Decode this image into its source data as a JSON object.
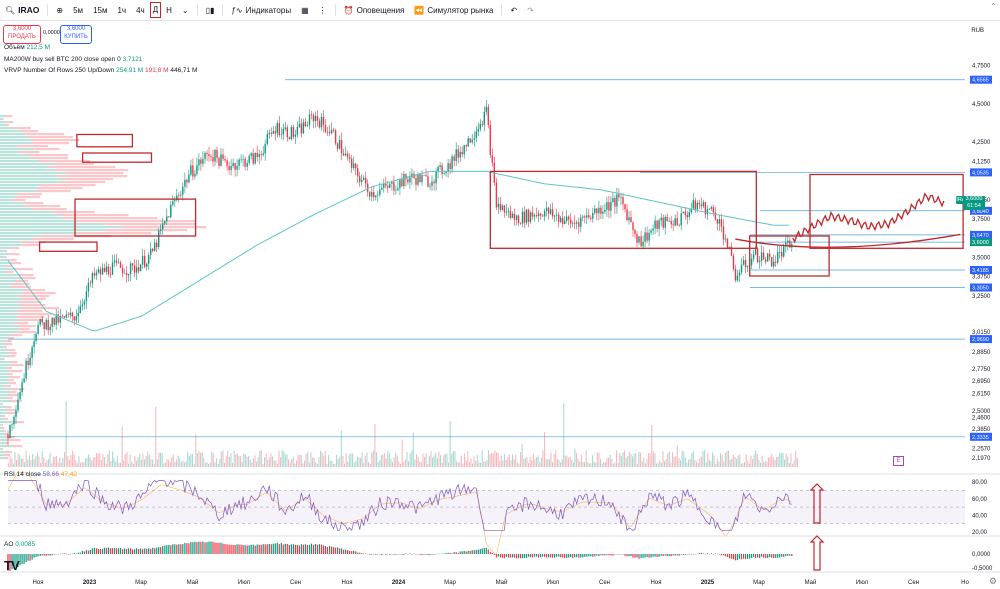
{
  "toolbar": {
    "symbol": "IRAO",
    "intervals": [
      "5м",
      "15м",
      "1ч",
      "4ч",
      "Д",
      "Н"
    ],
    "active_interval": "Д",
    "indicators_label": "Индикаторы",
    "alerts_label": "Оповещения",
    "replay_label": "Симулятор рынка"
  },
  "trade": {
    "sell_price": "3,6000",
    "sell_label": "ПРОДАТЬ",
    "spread": "0,0000",
    "buy_price": "3,6000",
    "buy_label": "КУПИТЬ"
  },
  "legend": {
    "volume_label": "Объём",
    "volume_value": "212,5 M",
    "ma_label": "MA200W buy sell BTC 200 close open 0",
    "ma_value": "3,7121",
    "vrvp_label": "VRVP Number Of Rows 250 Up/Down",
    "vrvp_up": "254,91 M",
    "vrvp_down": "191,8 M",
    "vrvp_total": "446,71 M",
    "rsi_label": "RSI 14 close",
    "rsi_value": "58,66",
    "rsi_ma": "47,42",
    "ao_label": "AO",
    "ao_value": "0,0085"
  },
  "axis": {
    "currency": "RUB",
    "current_symbol": "IRAO",
    "current_price": "3,6000",
    "countdown": "61:54",
    "watermark": "TV",
    "event_marker": "E"
  },
  "colors": {
    "up": "#089981",
    "down": "#f23645",
    "ma": "#5dc5c5",
    "annotation": "#c0282d",
    "rsi": "#7e57c2",
    "hline": "#4aa3df",
    "badge": "#2962ff"
  },
  "chart_data": [
    {
      "type": "candlestick",
      "title": "IRAO",
      "ylim": [
        2.15,
        4.85
      ],
      "y_ticks": [
        "4,7500",
        "4,5000",
        "4,2500",
        "4,1250",
        "3,8750",
        "3,7500",
        "3,5000",
        "3,3750",
        "3,2500",
        "3,0150",
        "2,8850",
        "2,7750",
        "2,6950",
        "2,6150",
        "2,5000",
        "2,4600",
        "2,3850",
        "2,2570",
        "2,1970"
      ],
      "x_labels": [
        "Ноя",
        "2023",
        "Мар",
        "Май",
        "Июл",
        "Сен",
        "Ноя",
        "2024",
        "Мар",
        "Май",
        "Июл",
        "Сен",
        "Ноя",
        "2025",
        "Мар",
        "Май",
        "Июл",
        "Сен",
        "Но"
      ],
      "horizontal_levels": [
        {
          "value": 4.6565,
          "label": "4,6565"
        },
        {
          "value": 4.0535,
          "label": "4,0535"
        },
        {
          "value": 3.804,
          "label": "3,8040"
        },
        {
          "value": 3.647,
          "label": "3,6470"
        },
        {
          "value": 3.6,
          "label": "3,6000"
        },
        {
          "value": 3.4185,
          "label": "3,4185"
        },
        {
          "value": 3.305,
          "label": "3,3050"
        },
        {
          "value": 2.969,
          "label": "2,9690"
        },
        {
          "value": 2.3335,
          "label": "2,3335"
        }
      ],
      "price_path": [
        [
          0.0,
          2.35
        ],
        [
          0.03,
          3.05
        ],
        [
          0.07,
          3.12
        ],
        [
          0.09,
          3.38
        ],
        [
          0.11,
          3.44
        ],
        [
          0.13,
          3.42
        ],
        [
          0.15,
          3.52
        ],
        [
          0.17,
          3.82
        ],
        [
          0.19,
          4.05
        ],
        [
          0.21,
          4.18
        ],
        [
          0.23,
          4.1
        ],
        [
          0.26,
          4.15
        ],
        [
          0.28,
          4.35
        ],
        [
          0.3,
          4.3
        ],
        [
          0.32,
          4.42
        ],
        [
          0.34,
          4.3
        ],
        [
          0.36,
          4.08
        ],
        [
          0.38,
          3.92
        ],
        [
          0.4,
          3.96
        ],
        [
          0.42,
          4.02
        ],
        [
          0.44,
          4.0
        ],
        [
          0.46,
          4.1
        ],
        [
          0.48,
          4.25
        ],
        [
          0.5,
          4.45
        ],
        [
          0.51,
          3.85
        ],
        [
          0.53,
          3.75
        ],
        [
          0.56,
          3.8
        ],
        [
          0.59,
          3.72
        ],
        [
          0.62,
          3.82
        ],
        [
          0.64,
          3.88
        ],
        [
          0.66,
          3.6
        ],
        [
          0.68,
          3.72
        ],
        [
          0.7,
          3.74
        ],
        [
          0.72,
          3.85
        ],
        [
          0.74,
          3.78
        ],
        [
          0.75,
          3.62
        ],
        [
          0.76,
          3.38
        ],
        [
          0.78,
          3.52
        ],
        [
          0.8,
          3.48
        ],
        [
          0.82,
          3.6
        ]
      ],
      "ma200w": [
        [
          0.0,
          3.48
        ],
        [
          0.04,
          3.15
        ],
        [
          0.09,
          3.02
        ],
        [
          0.14,
          3.12
        ],
        [
          0.2,
          3.35
        ],
        [
          0.26,
          3.58
        ],
        [
          0.32,
          3.78
        ],
        [
          0.38,
          3.96
        ],
        [
          0.44,
          4.06
        ],
        [
          0.5,
          4.06
        ],
        [
          0.56,
          3.98
        ],
        [
          0.62,
          3.94
        ],
        [
          0.68,
          3.86
        ],
        [
          0.74,
          3.78
        ],
        [
          0.8,
          3.71
        ],
        [
          0.82,
          3.71
        ]
      ],
      "forecast_path": [
        [
          0.82,
          3.62
        ],
        [
          0.84,
          3.7
        ],
        [
          0.86,
          3.77
        ],
        [
          0.88,
          3.74
        ],
        [
          0.9,
          3.7
        ],
        [
          0.92,
          3.72
        ],
        [
          0.94,
          3.8
        ],
        [
          0.96,
          3.9
        ],
        [
          0.98,
          3.85
        ]
      ]
    },
    {
      "type": "line",
      "title": "RSI 14 close",
      "ylim": [
        20,
        85
      ],
      "y_ticks": [
        "80,00",
        "60,00",
        "40,00",
        "20,00"
      ],
      "bands": [
        70,
        30
      ],
      "last_value": 58.66,
      "ma_value": 47.42
    },
    {
      "type": "bar",
      "title": "AO",
      "ylim": [
        -0.5,
        0.5
      ],
      "y_ticks": [
        "0,0000",
        "-0,5000"
      ],
      "last_value": 0.0085
    }
  ]
}
